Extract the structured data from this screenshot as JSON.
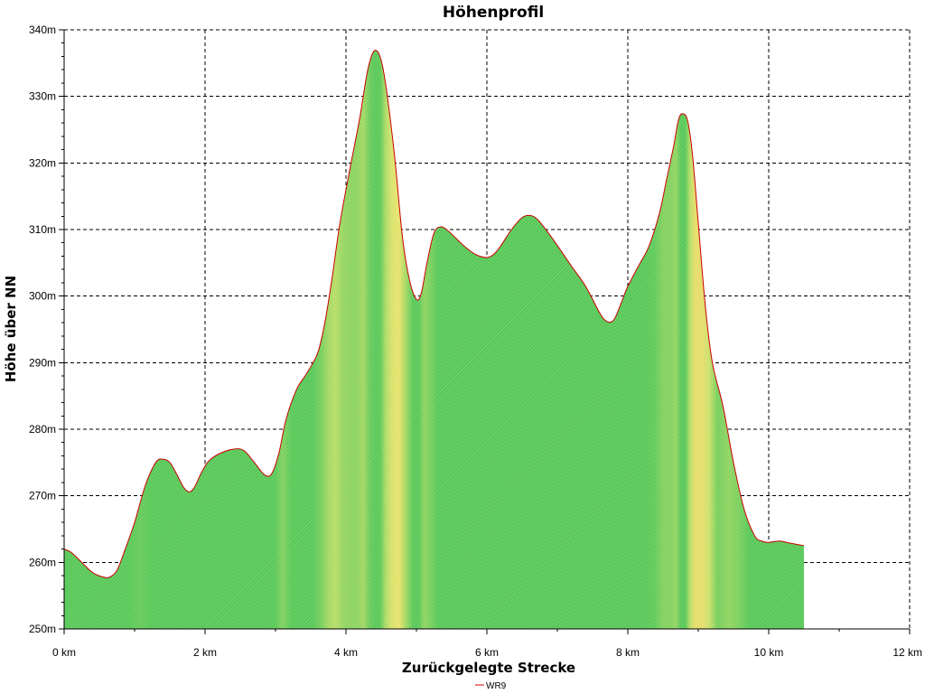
{
  "chart_data": {
    "type": "area",
    "title": "Höhenprofil",
    "xlabel": "Zurückgelegte Strecke",
    "ylabel": "Höhe über NN",
    "xlim": [
      0,
      12
    ],
    "ylim": [
      250,
      340
    ],
    "x_ticks": [
      0,
      2,
      4,
      6,
      8,
      10,
      12
    ],
    "x_tick_labels": [
      "0 km",
      "2 km",
      "4 km",
      "6 km",
      "8 km",
      "10 km",
      "12 km"
    ],
    "y_ticks": [
      250,
      260,
      270,
      280,
      290,
      300,
      310,
      320,
      330,
      340
    ],
    "y_tick_labels": [
      "250m",
      "260m",
      "270m",
      "280m",
      "290m",
      "300m",
      "310m",
      "320m",
      "330m",
      "340m"
    ],
    "grid": true,
    "legend_position": "bottom-center",
    "series": [
      {
        "name": "WR9",
        "color": "#cc0000",
        "x": [
          0.0,
          0.1,
          0.25,
          0.4,
          0.55,
          0.65,
          0.75,
          0.85,
          1.0,
          1.15,
          1.3,
          1.4,
          1.5,
          1.6,
          1.7,
          1.78,
          1.85,
          1.95,
          2.05,
          2.2,
          2.4,
          2.55,
          2.7,
          2.85,
          2.95,
          3.05,
          3.15,
          3.3,
          3.45,
          3.6,
          3.7,
          3.8,
          3.9,
          4.0,
          4.1,
          4.2,
          4.3,
          4.38,
          4.45,
          4.52,
          4.6,
          4.7,
          4.8,
          4.9,
          5.0,
          5.07,
          5.15,
          5.25,
          5.35,
          5.45,
          5.55,
          5.7,
          5.85,
          6.0,
          6.1,
          6.2,
          6.35,
          6.5,
          6.62,
          6.72,
          6.85,
          7.0,
          7.2,
          7.4,
          7.6,
          7.7,
          7.8,
          7.9,
          7.98,
          8.05,
          8.15,
          8.3,
          8.45,
          8.55,
          8.65,
          8.72,
          8.78,
          8.85,
          8.92,
          9.0,
          9.1,
          9.2,
          9.35,
          9.5,
          9.65,
          9.8,
          9.9,
          10.0,
          10.15,
          10.3,
          10.5
        ],
        "values": [
          262,
          261.5,
          260,
          258.5,
          257.8,
          257.8,
          258.8,
          261.5,
          266,
          271.5,
          275,
          275.5,
          275,
          273.2,
          271.2,
          270.6,
          271.3,
          273.5,
          275.2,
          276.3,
          277,
          276.8,
          275,
          273.1,
          273.4,
          276.5,
          281.5,
          286,
          288.5,
          291.5,
          296,
          302.5,
          310,
          316,
          321.5,
          327,
          333.5,
          336.5,
          336.7,
          334.5,
          329,
          320,
          309,
          302.5,
          299.5,
          300.5,
          305,
          309.5,
          310.4,
          309.8,
          308.8,
          307.3,
          306.2,
          305.8,
          306.3,
          307.6,
          310,
          311.8,
          312.1,
          311.5,
          309.8,
          307.6,
          304.5,
          301.5,
          297.5,
          296.2,
          296.4,
          298.8,
          301,
          302.5,
          304.5,
          307.5,
          312.5,
          317.5,
          322.5,
          326.5,
          327.4,
          326.3,
          321,
          311,
          298.5,
          290,
          283.5,
          275,
          268,
          264,
          263.2,
          263,
          263.2,
          262.9,
          262.5
        ]
      }
    ]
  }
}
